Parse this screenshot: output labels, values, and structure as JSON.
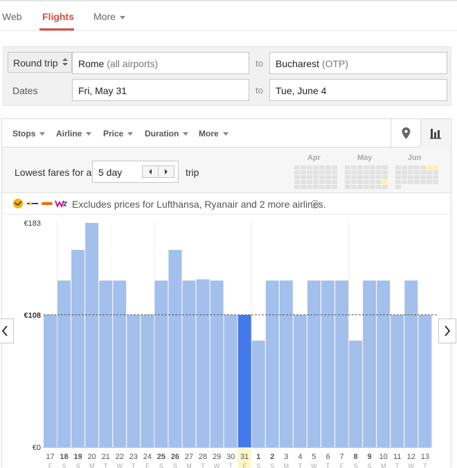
{
  "tabs": [
    {
      "label": "Web"
    },
    {
      "label": "Flights"
    },
    {
      "label": "More"
    }
  ],
  "search": {
    "trip_type": "Round trip",
    "origin_city": "Rome",
    "origin_detail": "(all airports)",
    "to_label": "to",
    "destination_city": "Bucharest",
    "destination_detail": "(OTP)",
    "dates_label": "Dates",
    "depart_date": "Fri, May 31",
    "return_date": "Tue, June 4"
  },
  "filters": [
    "Stops",
    "Airline",
    "Price",
    "Duration",
    "More"
  ],
  "lowest_fares": {
    "prefix": "Lowest fares for a",
    "duration": "5 day",
    "suffix": "trip",
    "months": [
      "Apr",
      "May",
      "Jun"
    ]
  },
  "excludes": {
    "text": "Excludes prices for Lufthansa, Ryanair and 2 more airlines.",
    "info_icon": "i"
  },
  "colors": {
    "accent": "#dd4b39",
    "bar": "#a3bfec",
    "bar_selected": "#4479e9"
  },
  "chart_data": {
    "type": "bar",
    "y_ticks": [
      "€183",
      "€108",
      "€0"
    ],
    "ylim": [
      0,
      183
    ],
    "reference_line": 108,
    "selected_index": 14,
    "categories": [
      "17",
      "18",
      "19",
      "20",
      "21",
      "22",
      "23",
      "24",
      "25",
      "26",
      "27",
      "28",
      "29",
      "30",
      "31",
      "1",
      "2",
      "3",
      "4",
      "5",
      "6",
      "7",
      "8",
      "9",
      "10",
      "11",
      "12",
      "13"
    ],
    "bold": [
      false,
      true,
      true,
      false,
      false,
      false,
      false,
      false,
      true,
      true,
      false,
      false,
      false,
      false,
      false,
      true,
      true,
      false,
      false,
      false,
      false,
      false,
      true,
      true,
      false,
      false,
      false,
      false
    ],
    "day_letters": [
      "F",
      "S",
      "S",
      "M",
      "T",
      "W",
      "T",
      "F",
      "S",
      "S",
      "M",
      "T",
      "W",
      "T",
      "F",
      "S",
      "S",
      "M",
      "T",
      "W",
      "T",
      "F",
      "S",
      "S",
      "M",
      "T",
      "W",
      "T"
    ],
    "values": [
      108,
      136,
      161,
      183,
      136,
      136,
      108,
      108,
      136,
      161,
      136,
      137,
      136,
      108,
      108,
      87,
      136,
      136,
      108,
      136,
      136,
      136,
      87,
      136,
      136,
      108,
      136,
      108
    ]
  }
}
